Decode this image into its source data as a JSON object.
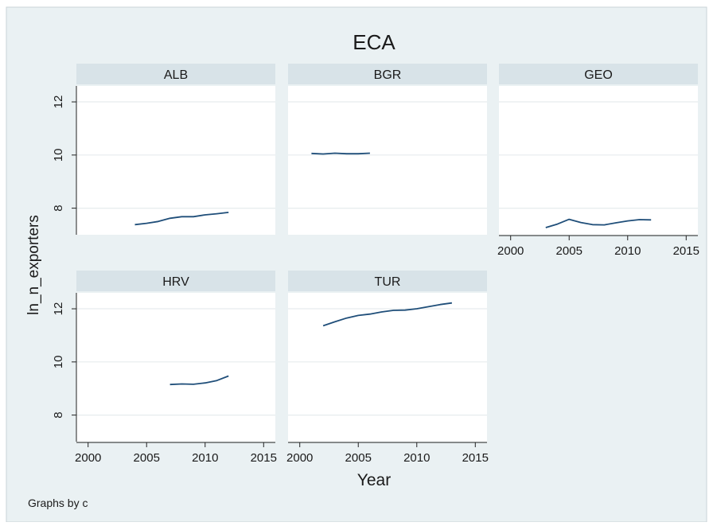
{
  "chart_data": {
    "type": "line",
    "title": "ECA",
    "xlabel": "Year",
    "ylabel": "ln_n_exporters",
    "note": "Graphs by c",
    "xlim": [
      1999,
      2016
    ],
    "ylim": [
      7,
      12.6
    ],
    "xticks": [
      2000,
      2005,
      2010,
      2015
    ],
    "yticks": [
      8,
      10,
      12
    ],
    "line_color": "#1f4e79",
    "panels": [
      {
        "name": "ALB",
        "x": [
          2004,
          2005,
          2006,
          2007,
          2008,
          2009,
          2010,
          2011,
          2012
        ],
        "y": [
          7.38,
          7.43,
          7.5,
          7.62,
          7.68,
          7.68,
          7.75,
          7.79,
          7.84
        ]
      },
      {
        "name": "BGR",
        "x": [
          2001,
          2002,
          2003,
          2004,
          2005,
          2006
        ],
        "y": [
          10.06,
          10.04,
          10.07,
          10.05,
          10.05,
          10.07
        ]
      },
      {
        "name": "GEO",
        "x": [
          2003,
          2004,
          2005,
          2006,
          2007,
          2008,
          2009,
          2010,
          2011,
          2012
        ],
        "y": [
          7.27,
          7.4,
          7.58,
          7.46,
          7.38,
          7.37,
          7.45,
          7.52,
          7.57,
          7.56
        ]
      },
      {
        "name": "HRV",
        "x": [
          2007,
          2008,
          2009,
          2010,
          2011,
          2012
        ],
        "y": [
          9.15,
          9.17,
          9.16,
          9.21,
          9.3,
          9.47
        ]
      },
      {
        "name": "TUR",
        "x": [
          2002,
          2003,
          2004,
          2005,
          2006,
          2007,
          2008,
          2009,
          2010,
          2011,
          2012,
          2013
        ],
        "y": [
          11.36,
          11.51,
          11.65,
          11.75,
          11.8,
          11.88,
          11.94,
          11.95,
          12.0,
          12.08,
          12.16,
          12.22
        ]
      }
    ]
  }
}
